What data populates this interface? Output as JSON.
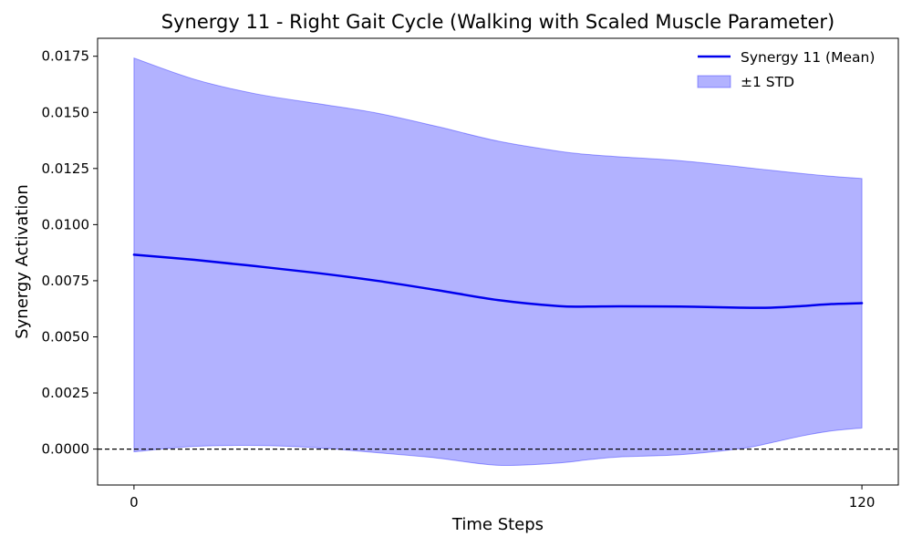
{
  "chart_data": {
    "type": "line",
    "title": "Synergy 11 - Right Gait Cycle (Walking with Scaled Muscle Parameter)",
    "xlabel": "Time Steps",
    "ylabel": "Synergy Activation",
    "xlim": [
      -6,
      126
    ],
    "ylim": [
      -0.0016,
      0.0183
    ],
    "x_ticks": [
      0,
      120
    ],
    "x_tick_labels": [
      "0",
      "120"
    ],
    "y_ticks": [
      0.0,
      0.0025,
      0.005,
      0.0075,
      0.01,
      0.0125,
      0.015,
      0.0175
    ],
    "y_tick_labels": [
      "0.0000",
      "0.0025",
      "0.0050",
      "0.0075",
      "0.0100",
      "0.0125",
      "0.0150",
      "0.0175"
    ],
    "grid": false,
    "legend_position": "top-right",
    "reference_line": {
      "y": 0.0,
      "style": "dashed",
      "color": "#000000"
    },
    "series": [
      {
        "name": "Synergy 11 (Mean)",
        "kind": "line",
        "color": "#0000ee",
        "x": [
          0,
          10,
          20,
          30,
          40,
          50,
          60,
          70,
          75,
          80,
          90,
          100,
          105,
          110,
          115,
          120
        ],
        "y": [
          0.00866,
          0.00843,
          0.00815,
          0.00785,
          0.0075,
          0.00708,
          0.00664,
          0.00637,
          0.00635,
          0.00636,
          0.00635,
          0.0063,
          0.0063,
          0.00637,
          0.00646,
          0.0065
        ]
      },
      {
        "name": "±1 STD",
        "kind": "band",
        "color": "#0000ff",
        "opacity": 0.3,
        "x": [
          0,
          10,
          20,
          30,
          40,
          50,
          60,
          70,
          75,
          80,
          90,
          100,
          105,
          110,
          115,
          120
        ],
        "upper": [
          0.01742,
          0.01647,
          0.01583,
          0.0154,
          0.01497,
          0.01437,
          0.01372,
          0.01327,
          0.01312,
          0.01302,
          0.01285,
          0.01257,
          0.01242,
          0.01228,
          0.01215,
          0.01205
        ],
        "lower": [
          -0.00012,
          0.00012,
          0.00016,
          6e-05,
          -0.00016,
          -0.0004,
          -0.00072,
          -0.00062,
          -0.00047,
          -0.00035,
          -0.00025,
          2e-05,
          0.00028,
          0.00058,
          0.00081,
          0.00094
        ]
      }
    ]
  }
}
